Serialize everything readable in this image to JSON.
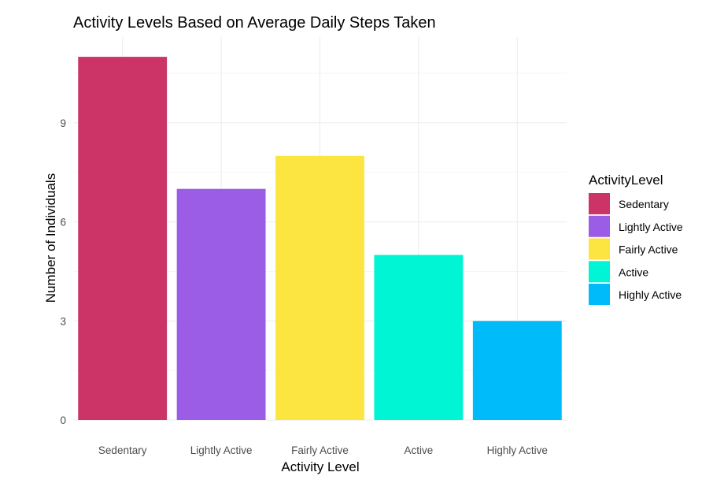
{
  "chart_data": {
    "type": "bar",
    "title": "Activity Levels Based on Average Daily Steps Taken",
    "xlabel": "Activity Level",
    "ylabel": "Number of Individuals",
    "categories": [
      "Sedentary",
      "Lightly Active",
      "Fairly Active",
      "Active",
      "Highly Active"
    ],
    "values": [
      11,
      7,
      8,
      5,
      3
    ],
    "colors": [
      "#cc3366",
      "#9b5de5",
      "#fde541",
      "#00f5d4",
      "#00bbf9"
    ],
    "ylim": [
      0,
      11.5
    ],
    "yticks": [
      0,
      3,
      6,
      9
    ],
    "grid": true,
    "legend": {
      "title": "ActivityLevel",
      "placement": "right",
      "entries": [
        "Sedentary",
        "Lightly Active",
        "Fairly Active",
        "Active",
        "Highly Active"
      ]
    }
  }
}
